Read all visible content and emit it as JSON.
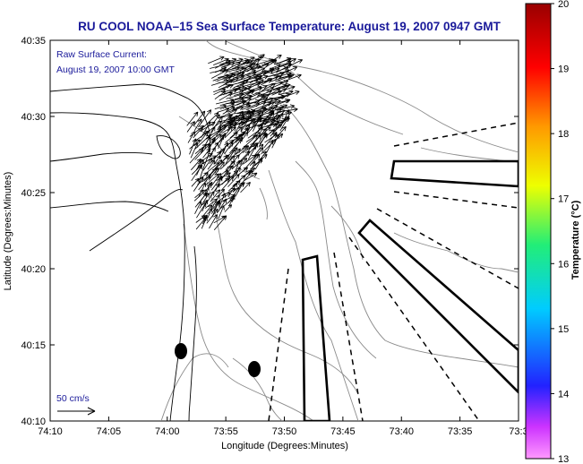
{
  "title": "RU COOL  NOAA–15  Sea Surface Temperature:  August 19, 2007 0947 GMT",
  "annotation": {
    "line1": "Raw Surface Current:",
    "line2": "August 19, 2007 10:00 GMT"
  },
  "scale_label": "50 cm/s",
  "x_axis": {
    "label": "Longitude (Degrees:Minutes)",
    "ticks": [
      "74:10",
      "74:05",
      "74:00",
      "73:55",
      "73:50",
      "73:45",
      "73:40",
      "73:35",
      "73:3"
    ]
  },
  "y_axis": {
    "label": "Latitude (Degrees:Minutes)",
    "ticks": [
      "40:35",
      "40:30",
      "40:25",
      "40:20",
      "40:15",
      "40:10"
    ]
  },
  "colorbar": {
    "title": "Temperature (°C)",
    "min": 13,
    "max": 20,
    "labels": [
      "20",
      "19",
      "18",
      "17",
      "16",
      "15",
      "14",
      "13"
    ],
    "stops": [
      "#ff99ff",
      "#cc33ff",
      "#2222ff",
      "#00ccff",
      "#22ee77",
      "#eeff00",
      "#ff9900",
      "#ff0000",
      "#990000"
    ]
  },
  "colors": {
    "title": "#1a1a9a",
    "coast": "#000000",
    "bathymetry": "#8a8a8a"
  }
}
